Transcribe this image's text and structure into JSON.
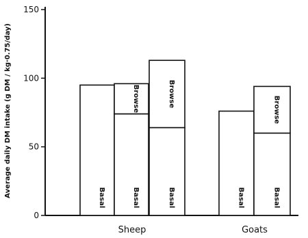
{
  "chart_data": {
    "type": "bar",
    "stacked": true,
    "ylabel": "Average daily DM intake (g DM / kg·0.75/day)",
    "ylim": [
      0,
      150
    ],
    "yticks": [
      0,
      50,
      100,
      150
    ],
    "grid": false,
    "legend": "none",
    "groups": [
      {
        "name": "Sheep",
        "bars": [
          {
            "segments": [
              {
                "label": "Basal",
                "value": 95
              }
            ]
          },
          {
            "segments": [
              {
                "label": "Basal",
                "value": 74
              },
              {
                "label": "Browse",
                "value": 22
              }
            ]
          },
          {
            "segments": [
              {
                "label": "Basal",
                "value": 64
              },
              {
                "label": "Browse",
                "value": 49
              }
            ]
          }
        ]
      },
      {
        "name": "Goats",
        "bars": [
          {
            "segments": [
              {
                "label": "Basal",
                "value": 76
              }
            ]
          },
          {
            "segments": [
              {
                "label": "Basal",
                "value": 60
              },
              {
                "label": "Browse",
                "value": 34
              }
            ]
          }
        ]
      }
    ]
  },
  "colors": {
    "ink": "#111111",
    "bar_fill": "#ffffff"
  }
}
